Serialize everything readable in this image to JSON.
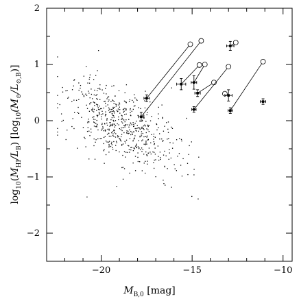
{
  "chart_data": {
    "type": "scatter",
    "title": "",
    "xlabel": "M_B,0 [mag]",
    "ylabel": "log10(M_HI/L_B) [log10(M_sun/L_sun,B)]",
    "xlabel_parts": {
      "symbol": "M",
      "sub": "B,0",
      "unit": " [mag]"
    },
    "ylabel_parts": {
      "log": "log",
      "logsub": "10",
      "open": "(",
      "m": "M",
      "msub": "HI",
      "slash": "/L",
      "lsub": "B",
      "close": ")",
      "unit_open": " [log",
      "unit_logsub": "10",
      "unit_m": "(M",
      "unit_msub": "⊙",
      "unit_l": "/L",
      "unit_lsub": "⊙,B",
      "unit_close": ")]"
    },
    "xlim": [
      -23,
      -9.5
    ],
    "ylim": [
      -2.5,
      2
    ],
    "x_ticks": [
      -20,
      -15,
      -10
    ],
    "x_tick_labels": [
      "−20",
      "−15",
      "−10"
    ],
    "y_ticks": [
      -2,
      -1,
      0,
      1,
      2
    ],
    "y_tick_labels": [
      "−2",
      "−1",
      "0",
      "1",
      "2"
    ],
    "grid": false,
    "legend": "none",
    "background_sample": {
      "description_of_source": "dense cloud of galaxies",
      "n_points": 620,
      "x_center": -18.8,
      "x_sd": 1.6,
      "y_intercept_at_center": -0.1,
      "slope_per_mag": 0.15,
      "y_scatter": 0.33,
      "seed": 7
    },
    "highlighted_galaxies": [
      {
        "x": -17.5,
        "y": 0.4,
        "xerr": 0.15,
        "yerr": 0.06,
        "x_open": -15.1,
        "y_open": 1.36
      },
      {
        "x": -17.8,
        "y": 0.07,
        "xerr": 0.15,
        "yerr": 0.08,
        "x_open": -14.5,
        "y_open": 1.42
      },
      {
        "x": -15.6,
        "y": 0.65,
        "xerr": 0.25,
        "yerr": 0.1,
        "x_open": -14.6,
        "y_open": 0.99
      },
      {
        "x": -14.9,
        "y": 0.68,
        "xerr": 0.15,
        "yerr": 0.12,
        "x_open": -14.3,
        "y_open": 1.0
      },
      {
        "x": -14.7,
        "y": 0.49,
        "xerr": 0.15,
        "yerr": 0.06,
        "x_open": -13.8,
        "y_open": 0.68
      },
      {
        "x": -14.9,
        "y": 0.2,
        "xerr": 0.12,
        "yerr": 0.05,
        "x_open": -13.0,
        "y_open": 0.96
      },
      {
        "x": -13.0,
        "y": 0.45,
        "xerr": 0.2,
        "yerr": 0.1,
        "x_open": -13.2,
        "y_open": 0.48
      },
      {
        "x": -12.9,
        "y": 0.18,
        "xerr": 0.12,
        "yerr": 0.05,
        "x_open": -11.1,
        "y_open": 1.05
      },
      {
        "x": -12.9,
        "y": 1.33,
        "xerr": 0.2,
        "yerr": 0.08,
        "x_open": -12.6,
        "y_open": 1.39
      },
      {
        "x": -11.1,
        "y": 0.34,
        "xerr": 0.15,
        "yerr": 0.05,
        "x_open": null,
        "y_open": null
      }
    ]
  }
}
